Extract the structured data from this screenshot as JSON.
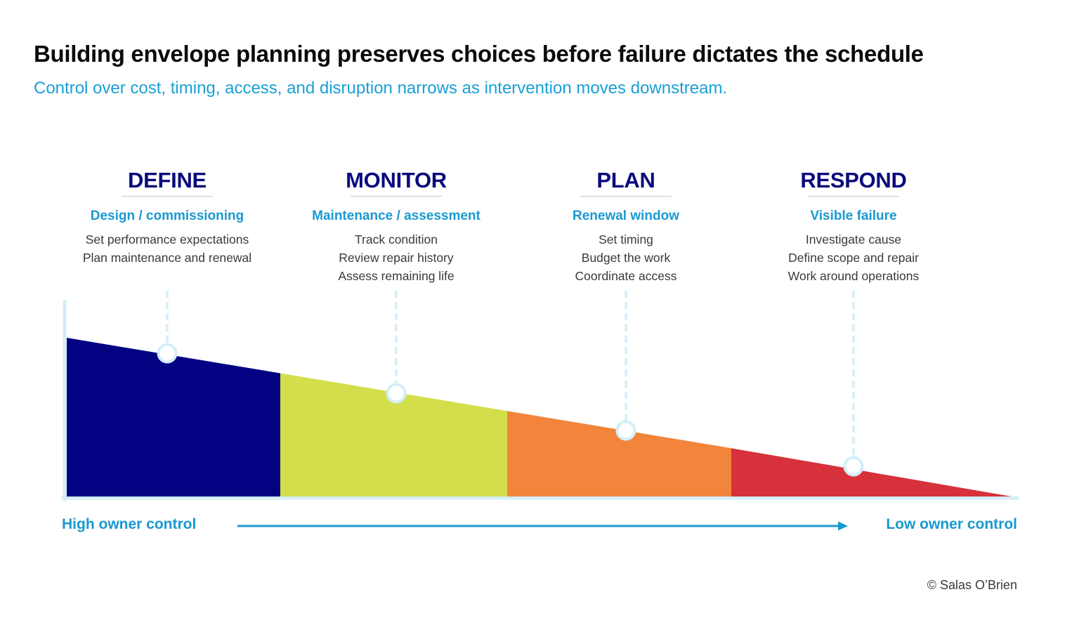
{
  "title": "Building envelope planning preserves choices before failure dictates the schedule",
  "subtitle": "Control over cost, timing, access, and disruption narrows as intervention moves downstream.",
  "phases": [
    {
      "name": "DEFINE",
      "subtitle": "Design / commissioning",
      "items": [
        "Set performance expectations",
        "Plan maintenance and renewal"
      ],
      "color": "#020282"
    },
    {
      "name": "MONITOR",
      "subtitle": "Maintenance / assessment",
      "items": [
        "Track condition",
        "Review repair history",
        "Assess remaining life"
      ],
      "color": "#d2df4b"
    },
    {
      "name": "PLAN",
      "subtitle": "Renewal window",
      "items": [
        "Set timing",
        "Budget the work",
        "Coordinate access"
      ],
      "color": "#f2843b"
    },
    {
      "name": "RESPOND",
      "subtitle": "Visible failure",
      "items": [
        "Investigate cause",
        "Define scope and repair",
        "Work around operations"
      ],
      "color": "#d7323c"
    }
  ],
  "axis": {
    "left_label": "High owner control",
    "right_label": "Low owner control",
    "arrow_color": "#1a99d0"
  },
  "credit": "© Salas O’Brien",
  "colors": {
    "title": "#0b0b0b",
    "subtitle": "#1aa0d6",
    "phase_name": "#0a0a7e",
    "phase_sub": "#1a99d0",
    "axis_line": "#d4eef9",
    "marker": "#d4eef9"
  }
}
